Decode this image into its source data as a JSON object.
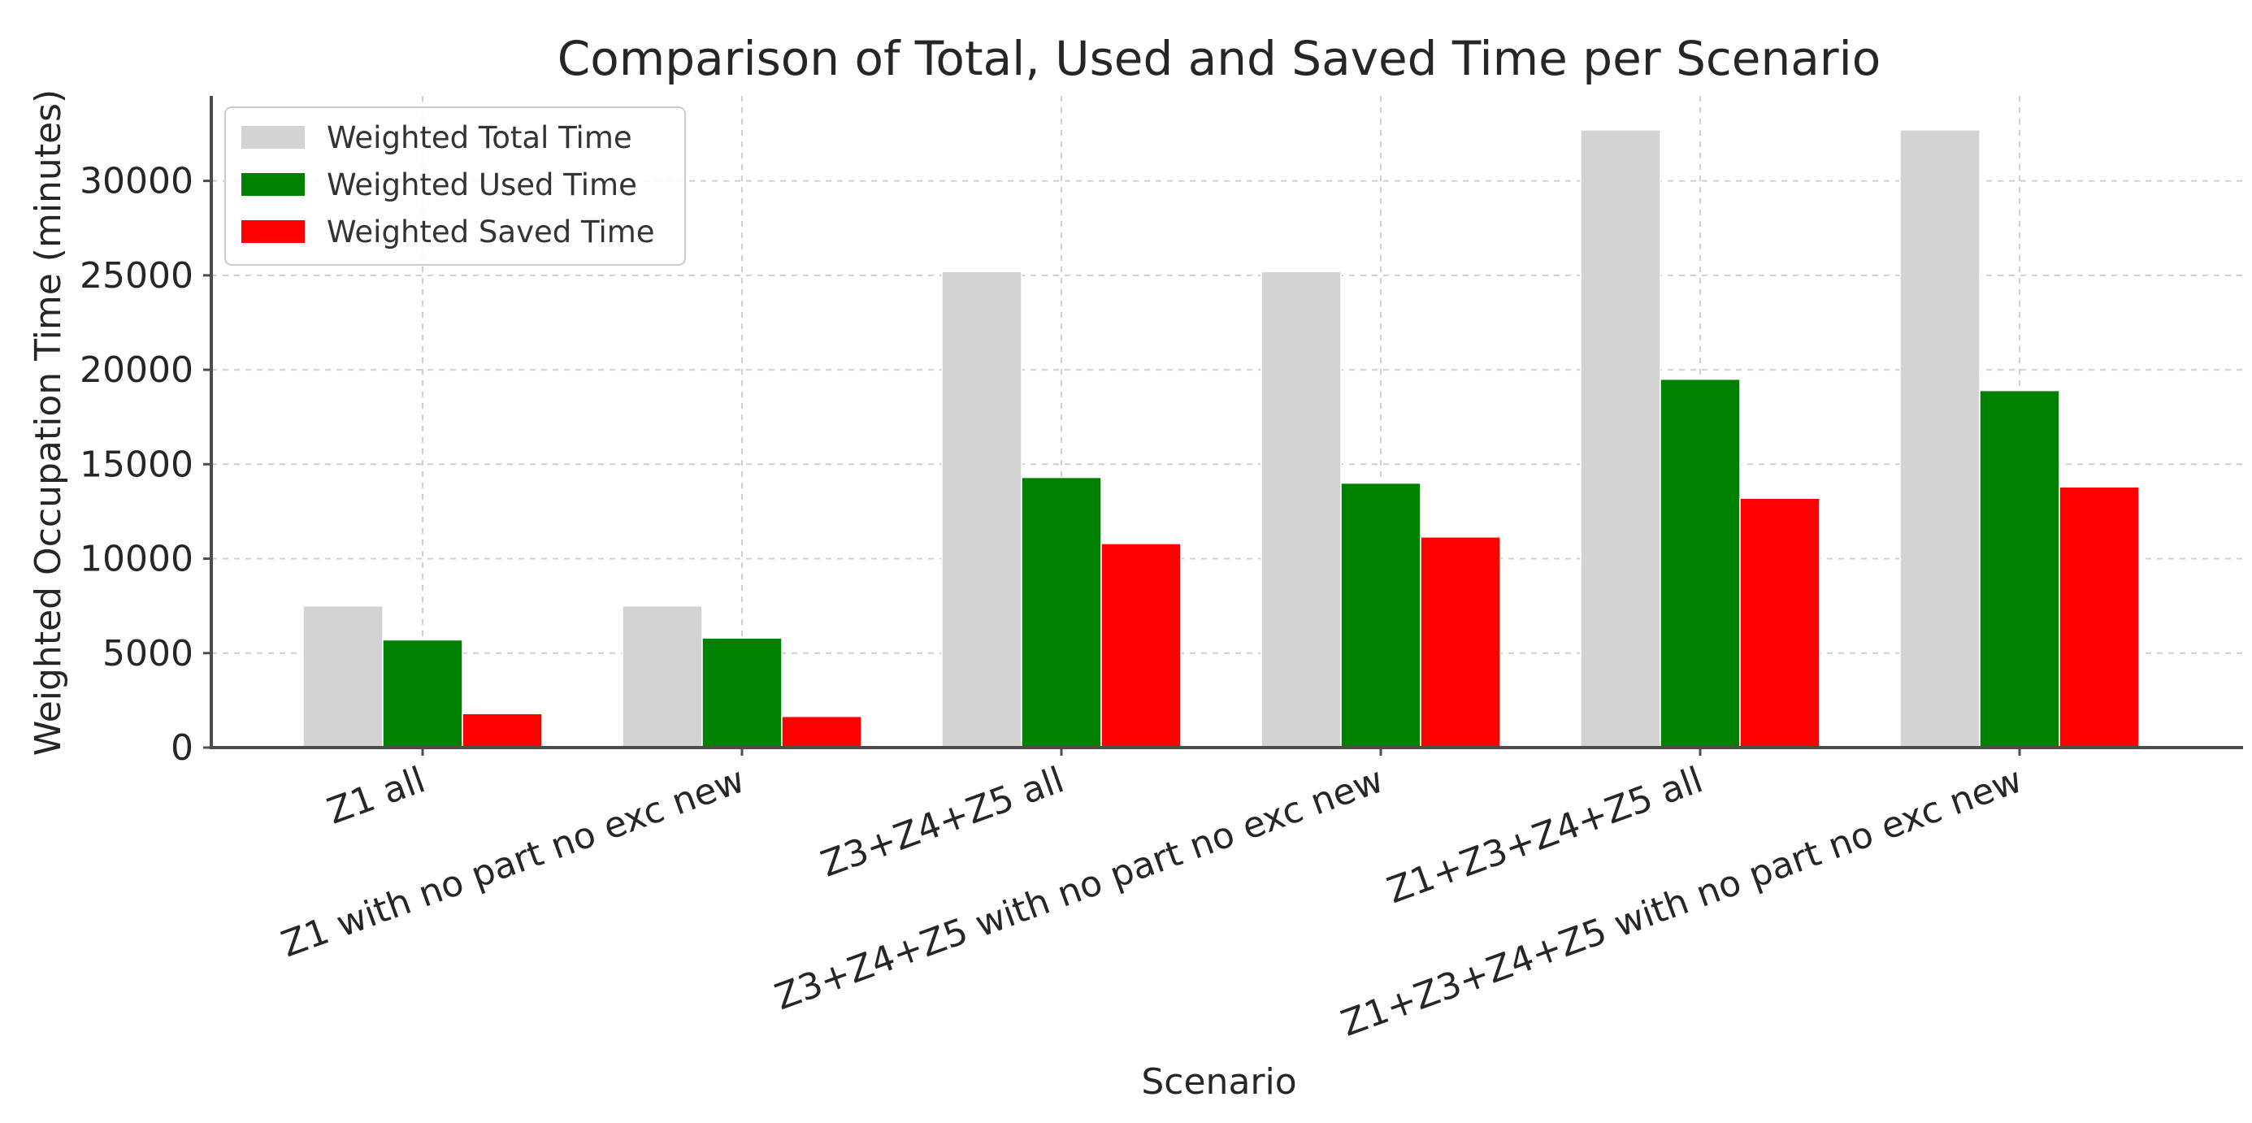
{
  "chart_data": {
    "type": "bar",
    "title": "Comparison of Total, Used and Saved Time per Scenario",
    "xlabel": "Scenario",
    "ylabel": "Weighted Occupation Time (minutes)",
    "ylim": [
      0,
      34500
    ],
    "yticks": [
      0,
      5000,
      10000,
      15000,
      20000,
      25000,
      30000
    ],
    "grid": true,
    "legend_position": "top-left",
    "categories": [
      "Z1 all",
      "Z1 with no part no exc new",
      "Z3+Z4+Z5 all",
      "Z3+Z4+Z5 with no part no exc new",
      "Z1+Z3+Z4+Z5 all",
      "Z1+Z3+Z4+Z5 with no part no exc new"
    ],
    "series": [
      {
        "name": "Weighted Total Time",
        "color": "#d3d3d3",
        "values": [
          7500,
          7500,
          25200,
          25200,
          32700,
          32700
        ]
      },
      {
        "name": "Weighted Used Time",
        "color": "#008000",
        "values": [
          5700,
          5800,
          14300,
          14000,
          19500,
          18900
        ]
      },
      {
        "name": "Weighted Saved Time",
        "color": "#ff0000",
        "values": [
          1800,
          1650,
          10800,
          11150,
          13200,
          13800
        ]
      }
    ]
  }
}
